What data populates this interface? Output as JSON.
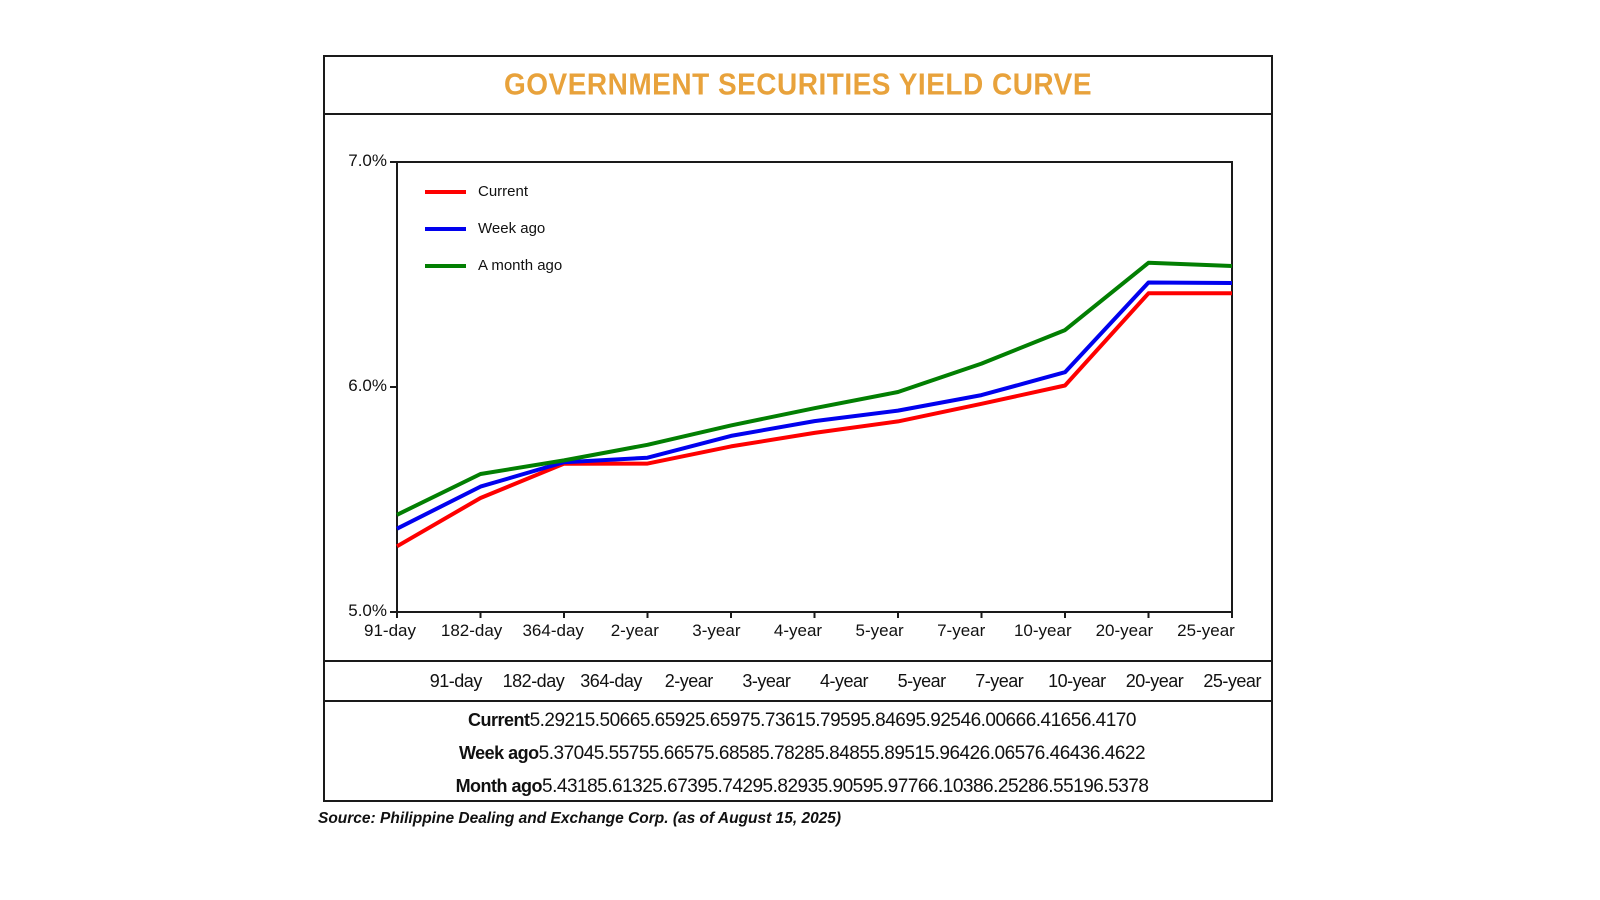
{
  "title": "GOVERNMENT SECURITIES YIELD CURVE",
  "title_color": "#E8A23B",
  "source_note": "Source: Philippine Dealing and Exchange Corp. (as of August 15, 2025)",
  "chart_data": {
    "type": "line",
    "title": "GOVERNMENT SECURITIES YIELD CURVE",
    "categories": [
      "91-day",
      "182-day",
      "364-day",
      "2-year",
      "3-year",
      "4-year",
      "5-year",
      "7-year",
      "10-year",
      "20-year",
      "25-year"
    ],
    "series": [
      {
        "name": "Current",
        "color": "#fe0000",
        "values": [
          5.2921,
          5.5066,
          5.6592,
          5.6597,
          5.7361,
          5.7959,
          5.8469,
          5.9254,
          6.0066,
          6.4165,
          6.417
        ]
      },
      {
        "name": "Week ago",
        "color": "#0101ee",
        "values": [
          5.3704,
          5.5575,
          5.6657,
          5.6858,
          5.7828,
          5.8485,
          5.8951,
          5.9642,
          6.0657,
          6.4643,
          6.4622
        ]
      },
      {
        "name": "A month ago",
        "color": "#027f02",
        "values": [
          5.4318,
          5.6132,
          5.6739,
          5.7429,
          5.8293,
          5.9059,
          5.9776,
          6.1038,
          6.2528,
          6.5519,
          6.5378
        ]
      }
    ],
    "ylim": [
      5.0,
      7.0
    ],
    "ytick_values": [
      7.0,
      6.0,
      5.0
    ],
    "ytick_labels": [
      "7.0%",
      "6.0%",
      "5.0%"
    ],
    "xlabel": "",
    "ylabel": "",
    "grid": false,
    "legend_position": "top-left"
  },
  "table": {
    "column_headers": [
      "91-day",
      "182-day",
      "364-day",
      "2-year",
      "3-year",
      "4-year",
      "5-year",
      "7-year",
      "10-year",
      "20-year",
      "25-year"
    ],
    "rows": [
      {
        "label": "Current",
        "values": [
          "5.2921",
          "5.5066",
          "5.6592",
          "5.6597",
          "5.7361",
          "5.7959",
          "5.8469",
          "5.9254",
          "6.0066",
          "6.4165",
          "6.4170"
        ]
      },
      {
        "label": "Week ago",
        "values": [
          "5.3704",
          "5.5575",
          "5.6657",
          "5.6858",
          "5.7828",
          "5.8485",
          "5.8951",
          "5.9642",
          "6.0657",
          "6.4643",
          "6.4622"
        ]
      },
      {
        "label": "Month ago",
        "values": [
          "5.4318",
          "5.6132",
          "5.6739",
          "5.7429",
          "5.8293",
          "5.9059",
          "5.9776",
          "6.1038",
          "6.2528",
          "6.5519",
          "6.5378"
        ]
      }
    ]
  }
}
